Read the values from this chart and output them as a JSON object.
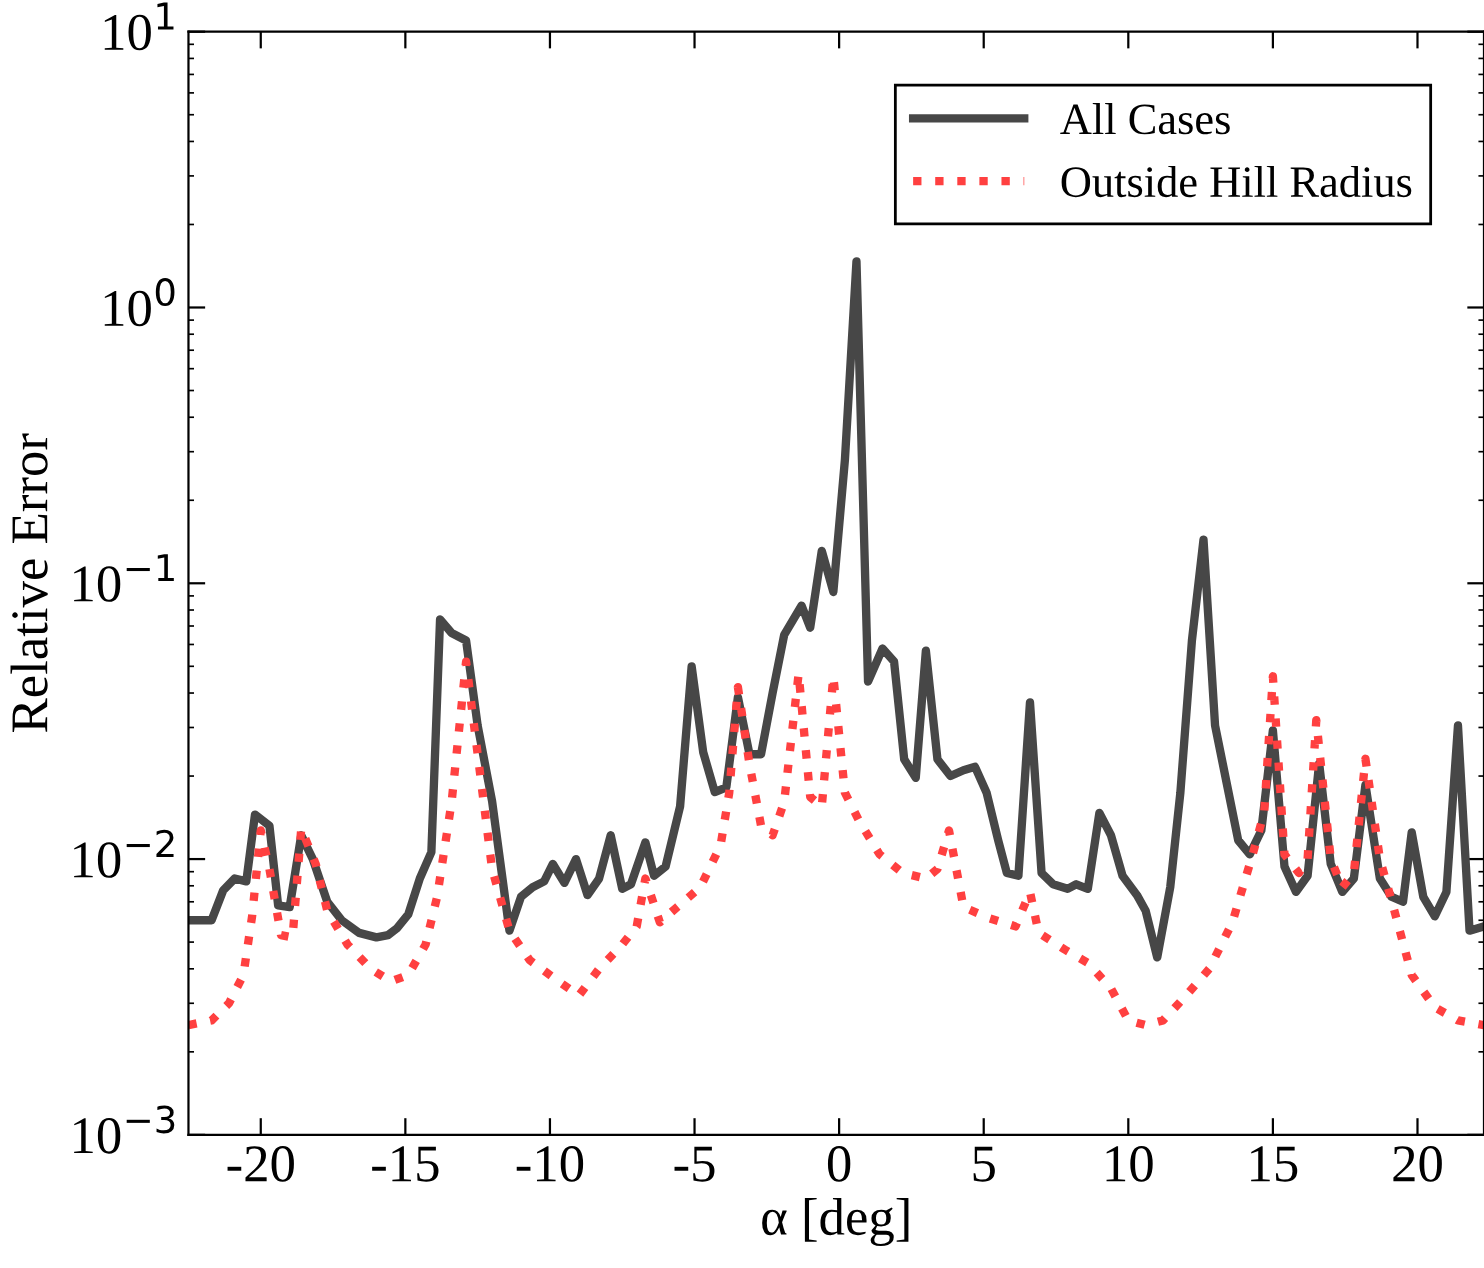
{
  "chart_data": {
    "type": "line",
    "xlabel": "α [deg]",
    "ylabel": "Relative Error",
    "log": "y",
    "legend": "top right",
    "grid": false,
    "xlim": [
      -22.5,
      22.3
    ],
    "xticks": [
      -20,
      -15,
      -10,
      -5,
      0,
      5,
      10,
      15,
      20
    ],
    "ylim": [
      0.001,
      10
    ],
    "yticks": [
      {
        "value": 0.001,
        "label": "10$^{−3}$"
      },
      {
        "value": 0.01,
        "label": "10$^{−2}$"
      },
      {
        "value": 0.1,
        "label": "10$^{−1}$"
      },
      {
        "value": 1,
        "label": "10$^{0}$"
      },
      {
        "value": 10,
        "label": "10$^{1}$"
      }
    ],
    "series": [
      {
        "name": "All Cases",
        "color": "#474747",
        "line_style": "solid",
        "x": [
          -22.5,
          -21.7,
          -21.3,
          -20.9,
          -20.5,
          -20.2,
          -19.7,
          -19.4,
          -19.0,
          -18.6,
          -18.2,
          -17.7,
          -17.2,
          -16.6,
          -16.0,
          -15.6,
          -15.3,
          -14.9,
          -14.5,
          -14.1,
          -13.8,
          -13.4,
          -12.9,
          -12.5,
          -12.0,
          -11.4,
          -11.0,
          -10.6,
          -10.2,
          -9.9,
          -9.5,
          -9.1,
          -8.7,
          -8.3,
          -7.9,
          -7.5,
          -7.2,
          -6.7,
          -6.4,
          -6.0,
          -5.5,
          -5.1,
          -4.7,
          -4.3,
          -3.9,
          -3.5,
          -3.1,
          -2.7,
          -2.3,
          -1.9,
          -1.3,
          -1.0,
          -0.6,
          -0.2,
          0.2,
          0.6,
          1.0,
          1.5,
          1.9,
          2.25,
          2.65,
          3.0,
          3.4,
          3.85,
          4.3,
          4.7,
          5.1,
          5.5,
          5.8,
          6.2,
          6.6,
          7.0,
          7.4,
          7.9,
          8.2,
          8.6,
          9.0,
          9.4,
          9.8,
          10.3,
          10.6,
          11.0,
          11.45,
          11.8,
          12.2,
          12.6,
          13.0,
          13.4,
          13.8,
          14.2,
          14.6,
          15.0,
          15.4,
          15.8,
          16.2,
          16.6,
          17.0,
          17.4,
          17.8,
          18.2,
          18.7,
          19.1,
          19.5,
          19.8,
          20.2,
          20.6,
          21.0,
          21.4,
          21.8,
          22.3
        ],
        "values": [
          0.006,
          0.006,
          0.0077,
          0.0085,
          0.0083,
          0.0145,
          0.0132,
          0.0068,
          0.0067,
          0.0122,
          0.01,
          0.007,
          0.006,
          0.0054,
          0.0052,
          0.0053,
          0.0056,
          0.0063,
          0.0085,
          0.0106,
          0.074,
          0.066,
          0.062,
          0.0305,
          0.0162,
          0.0055,
          0.0073,
          0.0079,
          0.0083,
          0.0096,
          0.0082,
          0.01,
          0.0074,
          0.0085,
          0.0122,
          0.0078,
          0.0081,
          0.0115,
          0.0087,
          0.0094,
          0.0155,
          0.05,
          0.0244,
          0.0175,
          0.0182,
          0.0387,
          0.024,
          0.024,
          0.04,
          0.065,
          0.083,
          0.069,
          0.131,
          0.093,
          0.28,
          1.47,
          0.044,
          0.058,
          0.052,
          0.023,
          0.0197,
          0.057,
          0.023,
          0.02,
          0.021,
          0.0216,
          0.0174,
          0.0117,
          0.0089,
          0.0087,
          0.037,
          0.0089,
          0.0081,
          0.0078,
          0.0081,
          0.0078,
          0.0147,
          0.0122,
          0.0087,
          0.0074,
          0.0065,
          0.0044,
          0.0079,
          0.0174,
          0.062,
          0.144,
          0.0305,
          0.0189,
          0.0117,
          0.0104,
          0.0127,
          0.0293,
          0.0094,
          0.0076,
          0.0087,
          0.0222,
          0.0096,
          0.0076,
          0.0085,
          0.0186,
          0.0085,
          0.0073,
          0.007,
          0.0125,
          0.0073,
          0.0062,
          0.0076,
          0.0305,
          0.0055,
          0.0057
        ]
      },
      {
        "name": "Outside Hill Radius",
        "color": "#ff4040",
        "line_style": "dotted",
        "x": [
          -22.5,
          -21.7,
          -21.1,
          -20.6,
          -20.3,
          -20.0,
          -19.7,
          -19.3,
          -18.9,
          -18.6,
          -18.1,
          -17.7,
          -17.0,
          -16.2,
          -15.5,
          -14.9,
          -14.3,
          -13.9,
          -13.4,
          -12.9,
          -12.5,
          -12.0,
          -11.4,
          -10.7,
          -9.7,
          -9.0,
          -8.3,
          -7.5,
          -7.0,
          -6.7,
          -6.2,
          -5.6,
          -4.8,
          -4.1,
          -3.8,
          -3.5,
          -3.1,
          -2.7,
          -2.3,
          -1.9,
          -1.4,
          -1.0,
          -0.6,
          -0.2,
          0.2,
          0.7,
          1.4,
          2.2,
          3.0,
          3.4,
          3.8,
          4.3,
          5.2,
          6.1,
          6.6,
          6.9,
          7.8,
          8.6,
          9.4,
          10.0,
          10.6,
          11.2,
          12.0,
          12.8,
          13.6,
          14.3,
          14.7,
          15.0,
          15.4,
          15.9,
          16.2,
          16.5,
          17.0,
          17.4,
          17.8,
          18.2,
          18.7,
          19.2,
          19.8,
          20.6,
          21.4,
          22.3
        ],
        "values": [
          0.0025,
          0.0026,
          0.003,
          0.0038,
          0.0062,
          0.0127,
          0.0092,
          0.0053,
          0.0052,
          0.0129,
          0.0096,
          0.0065,
          0.0049,
          0.004,
          0.0036,
          0.0038,
          0.0049,
          0.0073,
          0.0161,
          0.052,
          0.024,
          0.0092,
          0.0055,
          0.0043,
          0.0036,
          0.0032,
          0.004,
          0.0049,
          0.0057,
          0.0085,
          0.0059,
          0.0067,
          0.0079,
          0.0112,
          0.0174,
          0.042,
          0.0221,
          0.0132,
          0.0122,
          0.0161,
          0.047,
          0.0168,
          0.0155,
          0.046,
          0.0174,
          0.0137,
          0.0104,
          0.0089,
          0.0085,
          0.0092,
          0.0127,
          0.0067,
          0.0061,
          0.0057,
          0.0076,
          0.0054,
          0.0047,
          0.0042,
          0.0034,
          0.0026,
          0.0025,
          0.0026,
          0.0032,
          0.004,
          0.0059,
          0.0104,
          0.0148,
          0.046,
          0.0104,
          0.0089,
          0.01,
          0.0319,
          0.01,
          0.0079,
          0.0089,
          0.0231,
          0.01,
          0.0065,
          0.0038,
          0.0029,
          0.0026,
          0.0025
        ]
      }
    ]
  }
}
